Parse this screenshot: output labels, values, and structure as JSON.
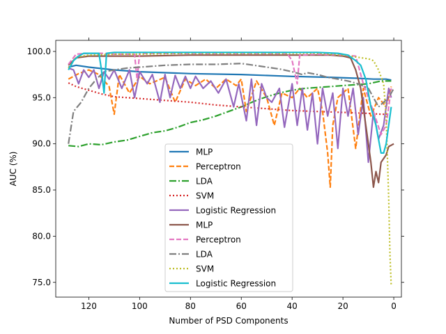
{
  "chart_data": {
    "type": "line",
    "title": "",
    "xlabel": "Number of PSD Components",
    "ylabel": "AUC (%)",
    "xlim": [
      133,
      -3
    ],
    "ylim": [
      73.4,
      101.2
    ],
    "x_ticks": [
      120,
      100,
      80,
      60,
      40,
      20,
      0
    ],
    "x_tick_labels": [
      "120",
      "100",
      "80",
      "60",
      "40",
      "20",
      "0"
    ],
    "y_ticks": [
      75,
      80,
      85,
      90,
      95,
      100
    ],
    "y_tick_labels": [
      "75.0",
      "80.0",
      "85.0",
      "90.0",
      "95.0",
      "100.0"
    ],
    "grid": false,
    "legend_position": "lower-center",
    "series": [
      {
        "name": "MLP",
        "color": "#1f77b4",
        "dash": "solid",
        "points": [
          [
            128,
            98.3
          ],
          [
            125,
            98.5
          ],
          [
            120,
            98.3
          ],
          [
            110,
            98.0
          ],
          [
            100,
            97.8
          ],
          [
            80,
            97.6
          ],
          [
            60,
            97.5
          ],
          [
            40,
            97.3
          ],
          [
            25,
            97.2
          ],
          [
            15,
            97.1
          ],
          [
            8,
            97.0
          ],
          [
            3,
            97.0
          ],
          [
            1,
            96.9
          ]
        ]
      },
      {
        "name": "Perceptron",
        "color": "#ff7f0e",
        "dash": "dashed",
        "points": [
          [
            128,
            97.0
          ],
          [
            124,
            97.6
          ],
          [
            120,
            98.0
          ],
          [
            116,
            97.5
          ],
          [
            112,
            96.2
          ],
          [
            110,
            93.2
          ],
          [
            108,
            97.5
          ],
          [
            104,
            95.5
          ],
          [
            100,
            97.3
          ],
          [
            96,
            96.5
          ],
          [
            90,
            97.2
          ],
          [
            86,
            94.5
          ],
          [
            82,
            97.0
          ],
          [
            78,
            96.3
          ],
          [
            74,
            97.0
          ],
          [
            70,
            96.0
          ],
          [
            66,
            97.0
          ],
          [
            62,
            96.3
          ],
          [
            60,
            97.0
          ],
          [
            58,
            93.5
          ],
          [
            54,
            96.8
          ],
          [
            50,
            95.0
          ],
          [
            47,
            92.0
          ],
          [
            44,
            95.5
          ],
          [
            40,
            95.0
          ],
          [
            37,
            96.0
          ],
          [
            34,
            95.0
          ],
          [
            30,
            96.0
          ],
          [
            28,
            93.5
          ],
          [
            26,
            89.0
          ],
          [
            25,
            85.3
          ],
          [
            24,
            92.0
          ],
          [
            22,
            95.0
          ],
          [
            18,
            96.0
          ],
          [
            15,
            89.5
          ],
          [
            12,
            96.0
          ],
          [
            9,
            93.0
          ],
          [
            6,
            95.0
          ],
          [
            3,
            94.0
          ],
          [
            1,
            96.2
          ]
        ]
      },
      {
        "name": "LDA",
        "color": "#2ca02c",
        "dash": "dashdot",
        "points": [
          [
            128,
            89.8
          ],
          [
            124,
            89.7
          ],
          [
            120,
            90.0
          ],
          [
            115,
            89.9
          ],
          [
            110,
            90.2
          ],
          [
            105,
            90.4
          ],
          [
            100,
            90.8
          ],
          [
            95,
            91.2
          ],
          [
            90,
            91.4
          ],
          [
            85,
            91.8
          ],
          [
            80,
            92.3
          ],
          [
            75,
            92.6
          ],
          [
            70,
            93.0
          ],
          [
            65,
            93.5
          ],
          [
            60,
            94.0
          ],
          [
            55,
            94.6
          ],
          [
            50,
            95.1
          ],
          [
            45,
            95.5
          ],
          [
            40,
            95.8
          ],
          [
            35,
            96.0
          ],
          [
            30,
            96.1
          ],
          [
            25,
            96.2
          ],
          [
            20,
            96.3
          ],
          [
            15,
            96.4
          ],
          [
            10,
            96.5
          ],
          [
            5,
            96.8
          ],
          [
            1,
            96.8
          ]
        ]
      },
      {
        "name": "SVM",
        "color": "#d62728",
        "dash": "dotted",
        "points": [
          [
            128,
            96.6
          ],
          [
            125,
            96.2
          ],
          [
            120,
            95.8
          ],
          [
            115,
            95.4
          ],
          [
            110,
            95.1
          ],
          [
            100,
            94.9
          ],
          [
            90,
            94.7
          ],
          [
            80,
            94.5
          ],
          [
            70,
            94.2
          ],
          [
            60,
            94.0
          ],
          [
            50,
            93.8
          ],
          [
            40,
            93.6
          ],
          [
            30,
            93.5
          ],
          [
            20,
            93.4
          ],
          [
            10,
            93.3
          ],
          [
            5,
            93.2
          ],
          [
            2,
            93.2
          ]
        ]
      },
      {
        "name": "Logistic Regression",
        "color": "#9467bd",
        "dash": "solid",
        "points": [
          [
            128,
            98.2
          ],
          [
            126,
            98.0
          ],
          [
            124,
            96.5
          ],
          [
            122,
            98.0
          ],
          [
            120,
            97.2
          ],
          [
            118,
            98.0
          ],
          [
            116,
            96.0
          ],
          [
            114,
            97.8
          ],
          [
            112,
            97.0
          ],
          [
            110,
            98.0
          ],
          [
            107,
            96.0
          ],
          [
            104,
            98.0
          ],
          [
            102,
            95.0
          ],
          [
            100,
            97.8
          ],
          [
            97,
            96.5
          ],
          [
            95,
            97.5
          ],
          [
            92,
            94.5
          ],
          [
            90,
            97.5
          ],
          [
            88,
            95.0
          ],
          [
            86,
            97.4
          ],
          [
            84,
            96.0
          ],
          [
            82,
            97.3
          ],
          [
            80,
            96.0
          ],
          [
            78,
            97.3
          ],
          [
            75,
            96.0
          ],
          [
            72,
            96.8
          ],
          [
            69,
            95.5
          ],
          [
            66,
            97.0
          ],
          [
            63,
            94.0
          ],
          [
            61,
            96.5
          ],
          [
            58,
            92.5
          ],
          [
            56,
            97.0
          ],
          [
            54,
            92.0
          ],
          [
            52,
            96.5
          ],
          [
            50,
            95.0
          ],
          [
            48,
            94.5
          ],
          [
            45,
            96.0
          ],
          [
            43,
            91.8
          ],
          [
            40,
            96.5
          ],
          [
            38,
            92.0
          ],
          [
            36,
            96.0
          ],
          [
            34,
            91.5
          ],
          [
            32,
            95.5
          ],
          [
            30,
            90.0
          ],
          [
            28,
            96.0
          ],
          [
            26,
            93.0
          ],
          [
            24,
            95.5
          ],
          [
            22,
            89.5
          ],
          [
            20,
            96.0
          ],
          [
            18,
            93.0
          ],
          [
            16,
            96.0
          ],
          [
            14,
            91.0
          ],
          [
            12,
            95.0
          ],
          [
            10,
            88.0
          ],
          [
            8,
            93.5
          ],
          [
            6,
            90.5
          ],
          [
            4,
            92.0
          ],
          [
            2,
            96.0
          ],
          [
            1,
            95.0
          ]
        ]
      },
      {
        "name": "MLP",
        "color": "#8c564b",
        "dash": "solid",
        "points": [
          [
            128,
            98.5
          ],
          [
            125,
            99.3
          ],
          [
            120,
            99.5
          ],
          [
            110,
            99.5
          ],
          [
            100,
            99.5
          ],
          [
            80,
            99.6
          ],
          [
            60,
            99.6
          ],
          [
            40,
            99.6
          ],
          [
            25,
            99.6
          ],
          [
            20,
            99.5
          ],
          [
            17,
            99.3
          ],
          [
            15,
            98.0
          ],
          [
            13,
            96.0
          ],
          [
            11,
            92.0
          ],
          [
            9,
            88.0
          ],
          [
            8,
            85.3
          ],
          [
            7,
            87.0
          ],
          [
            6,
            85.8
          ],
          [
            5,
            88.0
          ],
          [
            3,
            88.8
          ],
          [
            2,
            89.7
          ],
          [
            0,
            90.0
          ]
        ]
      },
      {
        "name": "Perceptron",
        "color": "#e377c2",
        "dash": "dashed",
        "points": [
          [
            128,
            98.6
          ],
          [
            125,
            99.7
          ],
          [
            120,
            99.8
          ],
          [
            115,
            99.8
          ],
          [
            110,
            99.7
          ],
          [
            102,
            99.7
          ],
          [
            101,
            97.0
          ],
          [
            100,
            99.8
          ],
          [
            90,
            99.8
          ],
          [
            80,
            99.8
          ],
          [
            70,
            99.8
          ],
          [
            60,
            99.8
          ],
          [
            50,
            99.8
          ],
          [
            42,
            99.8
          ],
          [
            40,
            99.0
          ],
          [
            38,
            96.5
          ],
          [
            37,
            99.6
          ],
          [
            30,
            99.7
          ],
          [
            20,
            99.6
          ],
          [
            15,
            99.5
          ],
          [
            12,
            96.5
          ],
          [
            10,
            95.0
          ],
          [
            8,
            93.5
          ],
          [
            5,
            91.0
          ],
          [
            3,
            92.0
          ],
          [
            1,
            96.0
          ]
        ]
      },
      {
        "name": "LDA",
        "color": "#7f7f7f",
        "dash": "dashdot",
        "points": [
          [
            128,
            90.0
          ],
          [
            126,
            93.5
          ],
          [
            123,
            94.5
          ],
          [
            120,
            96.0
          ],
          [
            117,
            97.0
          ],
          [
            114,
            97.8
          ],
          [
            110,
            98.0
          ],
          [
            105,
            98.2
          ],
          [
            100,
            98.3
          ],
          [
            95,
            98.4
          ],
          [
            90,
            98.5
          ],
          [
            80,
            98.6
          ],
          [
            70,
            98.6
          ],
          [
            60,
            98.7
          ],
          [
            55,
            98.5
          ],
          [
            50,
            98.3
          ],
          [
            45,
            98.1
          ],
          [
            40,
            97.8
          ],
          [
            36,
            97.5
          ],
          [
            34,
            97.7
          ],
          [
            30,
            97.5
          ],
          [
            26,
            97.2
          ],
          [
            22,
            97.0
          ],
          [
            18,
            96.8
          ],
          [
            14,
            96.5
          ],
          [
            10,
            96.0
          ],
          [
            6,
            94.0
          ],
          [
            4,
            94.5
          ],
          [
            2,
            95.0
          ],
          [
            0,
            96.0
          ]
        ]
      },
      {
        "name": "SVM",
        "color": "#bcbd22",
        "dash": "dotted",
        "points": [
          [
            128,
            98.2
          ],
          [
            125,
            99.4
          ],
          [
            120,
            99.6
          ],
          [
            110,
            99.7
          ],
          [
            100,
            99.7
          ],
          [
            80,
            99.8
          ],
          [
            60,
            99.8
          ],
          [
            40,
            99.8
          ],
          [
            30,
            99.8
          ],
          [
            20,
            99.6
          ],
          [
            15,
            99.4
          ],
          [
            10,
            99.2
          ],
          [
            8,
            99.0
          ],
          [
            6,
            98.0
          ],
          [
            4,
            96.5
          ],
          [
            3,
            93.0
          ],
          [
            2,
            84.0
          ],
          [
            1.5,
            78.0
          ],
          [
            1,
            74.6
          ]
        ]
      },
      {
        "name": "Logistic Regression",
        "color": "#17becf",
        "dash": "solid",
        "points": [
          [
            128,
            98.0
          ],
          [
            126,
            99.0
          ],
          [
            124,
            99.5
          ],
          [
            122,
            99.8
          ],
          [
            120,
            99.8
          ],
          [
            116,
            99.8
          ],
          [
            115,
            98.0
          ],
          [
            114,
            95.5
          ],
          [
            113,
            99.8
          ],
          [
            110,
            99.9
          ],
          [
            100,
            99.9
          ],
          [
            90,
            99.9
          ],
          [
            80,
            99.9
          ],
          [
            60,
            99.9
          ],
          [
            40,
            99.9
          ],
          [
            30,
            99.9
          ],
          [
            22,
            99.8
          ],
          [
            18,
            99.6
          ],
          [
            15,
            99.0
          ],
          [
            13,
            98.5
          ],
          [
            11,
            97.0
          ],
          [
            9,
            94.0
          ],
          [
            7,
            92.0
          ],
          [
            5,
            89.0
          ],
          [
            4,
            89.0
          ],
          [
            3,
            90.0
          ],
          [
            2,
            92.0
          ],
          [
            1,
            94.0
          ]
        ]
      }
    ]
  }
}
